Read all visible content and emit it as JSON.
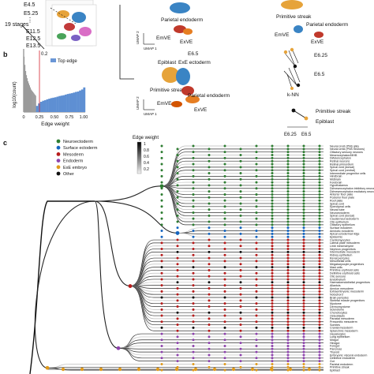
{
  "panel_a": {
    "stage_labels": [
      "E4.5",
      "E5.25",
      "E11.5",
      "E12.5",
      "E13.5"
    ],
    "stage_count_label": "19 stages",
    "dots": "⋮"
  },
  "panel_b": {
    "letter": "b",
    "ylabel": "log10(count)",
    "xlabel": "Edge weight",
    "threshold_label": "0.2",
    "legend_label": "Top edge",
    "xticks": [
      "0",
      "0.25",
      "0.50",
      "0.75",
      "1.00"
    ]
  },
  "umaps": {
    "top_left": [
      "Parietal endoderm",
      "EmVE",
      "ExVE"
    ],
    "top_right": [
      "Primitive streak",
      "Parietal endoderm",
      "EmVE",
      "ExVE"
    ],
    "stage_e65": "E6.5",
    "mid": [
      "Epiblast",
      "ExE ectoderm",
      "Primitive streak",
      "Parietal endoderm",
      "EmVE",
      "ExVE"
    ],
    "axis_x": "UMAP 1",
    "axis_y": "UMAP 2"
  },
  "graph_legend": {
    "e625": "E6.25",
    "e65": "E6.5",
    "knn": "k-NN",
    "primitive_streak": "Primitive streak",
    "epiblast": "Epiblast",
    "axis_e625": "E6.25",
    "axis_e65": "E6.5"
  },
  "panel_c": {
    "letter": "c",
    "legend": [
      {
        "label": "Neuroectoderm",
        "color": "#2e7d32"
      },
      {
        "label": "Surface ectoderm",
        "color": "#1565c0"
      },
      {
        "label": "Mesoderm",
        "color": "#b71c1c"
      },
      {
        "label": "Endoderm",
        "color": "#8e44ad"
      },
      {
        "label": "ExE embryo",
        "color": "#e09a1c"
      },
      {
        "label": "Other",
        "color": "#111111"
      }
    ],
    "edge_weight_title": "Edge weight",
    "edge_weight_ticks": [
      "1",
      "0.8",
      "0.6",
      "0.4",
      "0.2"
    ],
    "cell_types": [
      "Neural crest (PNS glia)",
      "Neural crest (PNS neurons)",
      "Olfactory sensory neurons",
      "Mesencephalon/MHB",
      "Di/telencephalon",
      "Retinal neurons",
      "Retinal primordium",
      "Spinal cord (dorsal)",
      "Spinal cord (ventral)",
      "Intermediate progenitor cells",
      "Hindbrain",
      "Midbrain",
      "Forebrain",
      "Hypothalamus",
      "Di/mesencephalon inhibitory neurons",
      "Di/mesencephalon excitatory neurons",
      "Anterior floor plate",
      "Posterior floor plate",
      "Roof plate",
      "Spinal cord",
      "Ependymal cells",
      "Neural tube",
      "Neuroectoderm",
      "Spinal cord (dorsal)",
      "Caudal neuroectoderm",
      "Otic epithelium",
      "Olfactory epithelium",
      "Surface ectoderm",
      "Amniotic ectoderm",
      "Apical ectodermal ridge",
      "Epidermis",
      "Cardiomyocytes",
      "Lateral plate mesoderm",
      "Limb mesenchyme",
      "Nephron progenitors",
      "Intermediate mesoderm",
      "Kidney epithelium",
      "Renal pericytes",
      "Mesothelial cells",
      "Megakaryocyte progenitors",
      "Mast cells",
      "Primitive erythroid cells",
      "Definitive erythroid cells",
      "Otic sensory",
      "Endothelium",
      "Haematoendothelial progenitors",
      "Allantois",
      "Amnion mesoderm",
      "Extraembryonic mesoderm",
      "Notochord",
      "Brain pericytes",
      "Skeletal muscle progenitors",
      "Myotome",
      "Dermomyotome",
      "Sclerotome",
      "Chondrocytes",
      "Osteoblasts",
      "Paraxial mesoderm",
      "Presomitic mesoderm",
      "Somites",
      "Cranial mesoderm",
      "Splanchnic mesoderm",
      "Hepatocytes",
      "Lung epithelium",
      "Midgut",
      "Hindgut",
      "Foregut",
      "Pancreas",
      "Thyroid",
      "Embryonic visceral endoderm",
      "Definitive endoderm",
      "Gut",
      "Parietal endoderm",
      "Primitive streak",
      "Epiblast"
    ]
  },
  "chart_data": {
    "type": "bar",
    "title": "",
    "xlabel": "Edge weight",
    "ylabel": "log10(count)",
    "xlim": [
      0,
      1
    ],
    "threshold": 0.2,
    "series": [
      {
        "name": "",
        "values": [
          2.7,
          2.3,
          2.0,
          1.8,
          1.65,
          1.5,
          1.4,
          1.3,
          1.2,
          1.1,
          1.05,
          1.0,
          0.95,
          0.9,
          0.85,
          0.8
        ]
      },
      {
        "name": "Top edge",
        "values": [
          0.3,
          0.42,
          0.5,
          0.55,
          0.58,
          0.62,
          0.65,
          0.68,
          0.7,
          0.72,
          0.75,
          0.78,
          0.8,
          0.82,
          0.85,
          0.88,
          0.9,
          0.92,
          0.95,
          0.98,
          1.0,
          1.05,
          1.1,
          1.2
        ]
      }
    ]
  }
}
